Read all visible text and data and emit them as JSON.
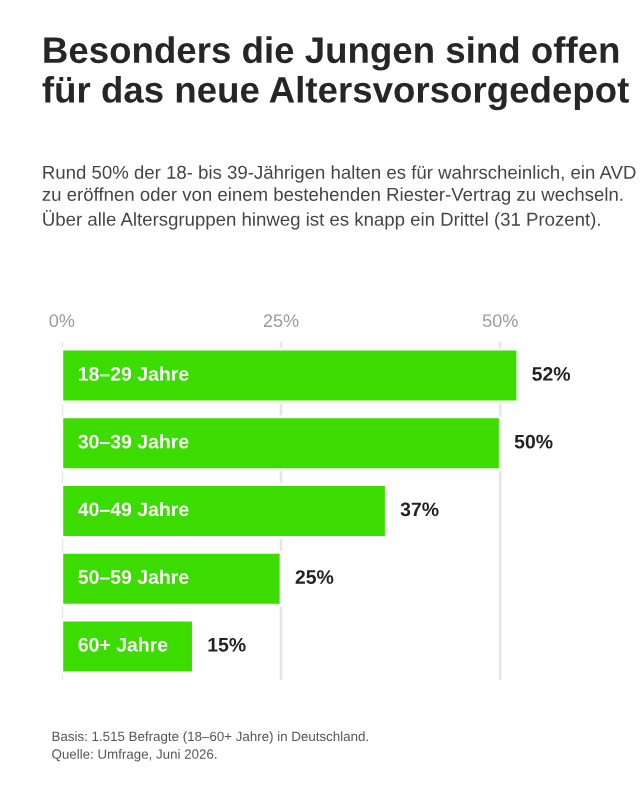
{
  "chart_data": {
    "type": "bar",
    "orientation": "horizontal",
    "title": "Besonders die Jungen sind offen für das neue Altersvorsorgedepot",
    "subtitle": "Rund 50% der 18- bis 39-Jährigen halten es für wahrscheinlich, ein AVD zu eröffnen oder von einem bestehenden Riester-Vertrag zu wechseln. Über alle Altersgruppen hinweg ist es knapp ein Drittel (31 Prozent).",
    "categories": [
      "18–29 Jahre",
      "30–39 Jahre",
      "40–49 Jahre",
      "50–59 Jahre",
      "60+ Jahre"
    ],
    "values": [
      52,
      50,
      37,
      25,
      15
    ],
    "value_labels": [
      "52%",
      "50%",
      "37%",
      "25%",
      "15%"
    ],
    "color": "#3ddc00",
    "xlim": [
      0,
      52
    ],
    "xticks": [
      {
        "value": 0,
        "label": "0%"
      },
      {
        "value": 25,
        "label": "25%"
      },
      {
        "value": 50,
        "label": "50%"
      }
    ],
    "grid": "x",
    "annotations": [
      "Basis: 1.515 Befragte (18–60+ Jahre) in Deutschland.",
      "Quelle: Umfrage, Juni 2026."
    ]
  }
}
